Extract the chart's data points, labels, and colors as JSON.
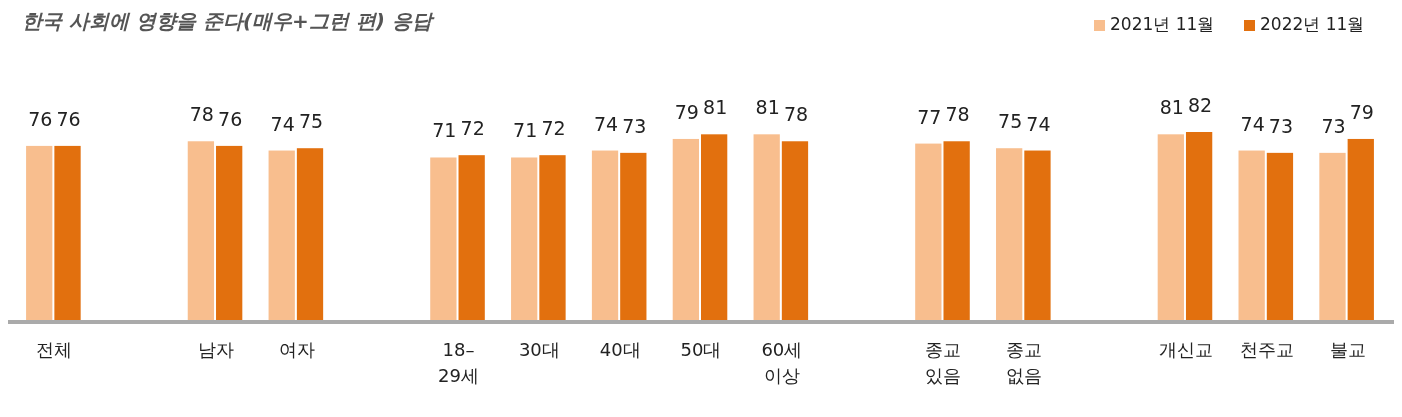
{
  "chart_data": {
    "type": "bar",
    "title": "한국 사회에 영향을 준다(매우+그런 편) 응답",
    "categories": [
      "전체",
      null,
      "남자",
      "여자",
      null,
      "18–\n29세",
      "30대",
      "40대",
      "50대",
      "60세\n이상",
      null,
      "종교\n있음",
      "종교\n없음",
      null,
      "개신교",
      "천주교",
      "불교"
    ],
    "series": [
      {
        "name": "2021년 11월",
        "color": "#f8be8e",
        "values": [
          76,
          null,
          78,
          74,
          null,
          71,
          71,
          74,
          79,
          81,
          null,
          77,
          75,
          null,
          81,
          74,
          73
        ]
      },
      {
        "name": "2022년 11월",
        "color": "#e2700e",
        "values": [
          76,
          null,
          76,
          75,
          null,
          72,
          72,
          73,
          81,
          78,
          null,
          78,
          74,
          null,
          82,
          73,
          79
        ]
      }
    ],
    "data_labels": true,
    "legend": "top right",
    "grid": false
  }
}
